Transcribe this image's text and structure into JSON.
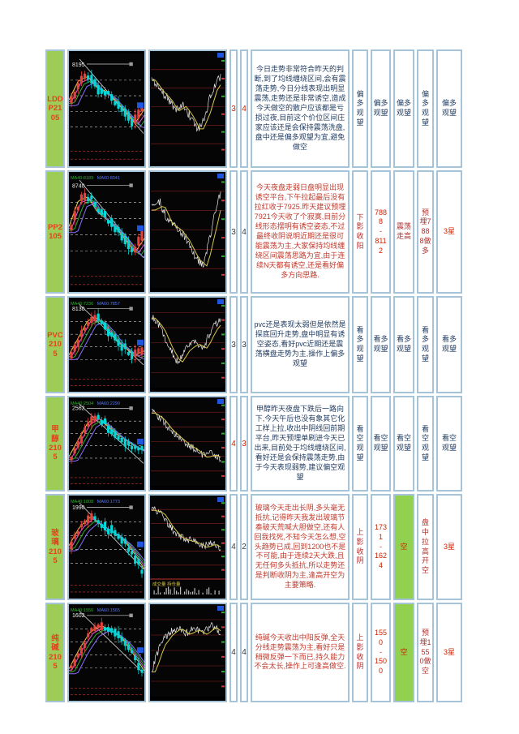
{
  "page": {
    "background": "#ffffff"
  },
  "table": {
    "border_color": "#a6c4d9",
    "label_bg": "#9ecd57",
    "highlight_green": "#92d050",
    "rows": [
      {
        "label": "LDD\nP21\n05",
        "score1": "3",
        "score2": "4",
        "score_color": "#cc2200",
        "analysis": "今日走势非常符合昨天的判断,到了均线缠绕区间,会有震荡走势,今日分线表现出明显震荡,走势还是非常诱空,造成今天做空的散户应该都是亏损过夜,目前这个价位区间庄家应该还是会保持震荡洗盘,盘中还是偏多观望为宜,避免做空",
        "analysis_color": "#1f3a5f",
        "daily_chart": {
          "peak_label": "8195",
          "ma_text": ""
        },
        "intraday_chart": {
          "tags": ""
        },
        "verdicts": [
          {
            "text": "偏多观望",
            "color": "#1f3a5f"
          },
          {
            "text": "偏多观望",
            "color": "#1f3a5f"
          },
          {
            "text": "偏多观望",
            "color": "#1f3a5f"
          },
          {
            "text": "偏多观望",
            "color": "#1f3a5f"
          },
          {
            "text": "偏多观望",
            "color": "#1f3a5f"
          }
        ]
      },
      {
        "label": "PP2\n105",
        "score1": "3",
        "score2": "4",
        "score_color": "#3a3a3a",
        "analysis": "今天夜盘走弱日盘明显出现诱空平台,下午拉起最后没有拉红收于7925.昨天建议预埋7921今天收了个寂寞,目前分线形态摆明有诱空姿态,不过最终收阴说明近期还是很可能震荡为主,大家保持均线缠绕区间震荡思路为宜,由于连续N天都有诱空,还是看好偏多方向思路.",
        "analysis_color": "#c0392b",
        "daily_chart": {
          "peak_label": "8740",
          "ma_text": "MA40:8189 MA60:8041"
        },
        "intraday_chart": {
          "tags": ""
        },
        "verdicts": [
          {
            "text": "下影收阳",
            "color": "#b03030"
          },
          {
            "text": "7888\n-\n8112",
            "color": "#cc2200"
          },
          {
            "text": "震荡走高",
            "color": "#b03030"
          },
          {
            "text": "预埋7888做多",
            "color": "#b03030"
          },
          {
            "text": "3星",
            "color": "#cc2200"
          }
        ]
      },
      {
        "label": "PVC\n210\n5",
        "score1": "3",
        "score2": "3",
        "score_color": "#3a3a3a",
        "analysis": "pvc还是表现太弱但是依然是探底回升走势,盘中明显有诱空姿态,看好pvc近期还是震荡横盘走势为主,操作上偏多观望",
        "analysis_color": "#1f3a5f",
        "daily_chart": {
          "peak_label": "8130",
          "ma_text": "MA40:7236 MA60:7857"
        },
        "intraday_chart": {
          "tags": ""
        },
        "verdicts": [
          {
            "text": "看多观望",
            "color": "#1f3a5f"
          },
          {
            "text": "看多观望",
            "color": "#1f3a5f"
          },
          {
            "text": "看多观望",
            "color": "#1f3a5f"
          },
          {
            "text": "看多观望",
            "color": "#1f3a5f"
          },
          {
            "text": "看多观望",
            "color": "#1f3a5f"
          }
        ]
      },
      {
        "label": "甲\n醇\n210\n5",
        "score1": "4",
        "score2": "3",
        "score_color": "#cc2200",
        "analysis": "甲醇昨天夜盘下跌后一路向下,今天午后也没有象其它化工样上拉,收出中阴线回前期平台,昨天预埋单刷进今天已出来,目前处于均线缠绕区间,看好还是会保持震荡走势,由于今天表现弱势,建议偏空观望",
        "analysis_color": "#1f3a5f",
        "daily_chart": {
          "peak_label": "2562",
          "ma_text": "MA40:2504 MA60:2290"
        },
        "intraday_chart": {
          "tags": ""
        },
        "verdicts": [
          {
            "text": "看空观望",
            "color": "#1f3a5f"
          },
          {
            "text": "看空观望",
            "color": "#1f3a5f"
          },
          {
            "text": "看空观望",
            "color": "#1f3a5f"
          },
          {
            "text": "看空观望",
            "color": "#1f3a5f"
          },
          {
            "text": "看空观望",
            "color": "#1f3a5f"
          }
        ]
      },
      {
        "label": "玻\n璃\n210\n5",
        "score1": "4",
        "score2": "2",
        "score_color": "#3a3a3a",
        "analysis": "玻璃今天走出长阴,多头毫无抵抗,记得昨天我发出玻璃节奏破天荒喊大胆做空,还有人回我找死,不知今天怎么想,空头趋势已成,回到1200也不是不可能,由于连续2天大跌,且无任何多头抵抗,所以走势还是判断收阴为主,逢高开空为主要策略.",
        "analysis_color": "#c0392b",
        "daily_chart": {
          "peak_label": "1990",
          "ma_text": "MA40:1808 MA60:1773"
        },
        "intraday_chart": {
          "tags": "成交量 持仓量"
        },
        "verdicts": [
          {
            "text": "上影收阴",
            "color": "#b03030"
          },
          {
            "text": "1731\n-\n1624",
            "color": "#cc2200"
          },
          {
            "text": "空",
            "color": "#cc2200",
            "bg": "#92d050"
          },
          {
            "text": "盘中拉高开空",
            "color": "#b03030"
          },
          {
            "text": "3星",
            "color": "#cc2200"
          }
        ]
      },
      {
        "label": "纯\n碱\n210\n5",
        "score1": "4",
        "score2": "4",
        "score_color": "#3a3a3a",
        "analysis": "纯碱今天收出中阳反弹,全天分线走势震荡为主,看好只是稍微反弹一下而已,持久能力不会太长,操作上可逢高做空.",
        "analysis_color": "#c0392b",
        "daily_chart": {
          "peak_label": "1602",
          "ma_text": "MA40:1556 MA60:1565"
        },
        "intraday_chart": {
          "tags": ""
        },
        "verdicts": [
          {
            "text": "上影收阴",
            "color": "#b03030"
          },
          {
            "text": "1550\n-\n1500",
            "color": "#cc2200"
          },
          {
            "text": "空",
            "color": "#cc2200",
            "bg": "#92d050"
          },
          {
            "text": "预埋1550做空",
            "color": "#b03030"
          },
          {
            "text": "3星",
            "color": "#cc2200"
          }
        ]
      }
    ]
  }
}
